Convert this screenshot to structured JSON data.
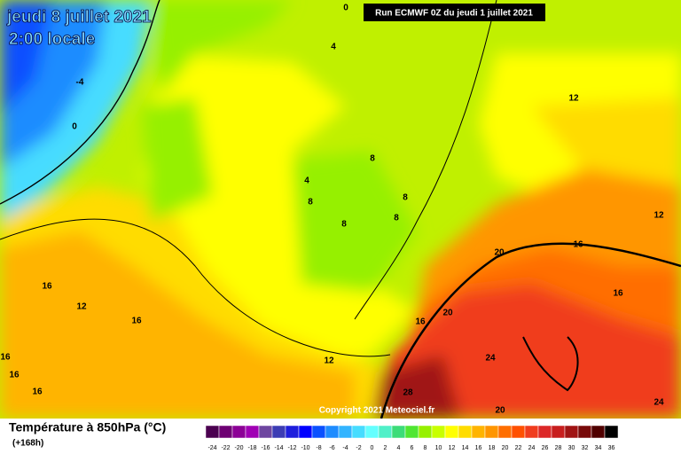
{
  "header": {
    "date": "jeudi 8 juillet 2021",
    "time": "2:00 locale",
    "run": "Run ECMWF 0Z du jeudi 1 juillet 2021"
  },
  "copyright": "Copyright 2021 Meteociel.fr",
  "legend": {
    "title": "Température à 850hPa (°C)",
    "lead": "(+168h)",
    "values": [
      -24,
      -22,
      -20,
      -18,
      -16,
      -14,
      -12,
      -10,
      -8,
      -6,
      -4,
      -2,
      0,
      2,
      4,
      6,
      8,
      10,
      12,
      14,
      16,
      18,
      20,
      22,
      24,
      26,
      28,
      30,
      32,
      34,
      36
    ],
    "colors": [
      "#4b0050",
      "#6e0073",
      "#8c0096",
      "#a000b4",
      "#6e46a0",
      "#3c3cb4",
      "#1e1edc",
      "#0000ff",
      "#0a50ff",
      "#1e8cff",
      "#32b4ff",
      "#46dcff",
      "#64ffff",
      "#50f0c8",
      "#3cdc78",
      "#50e632",
      "#96f000",
      "#c8ff00",
      "#ffff00",
      "#ffdc00",
      "#ffb400",
      "#ff9600",
      "#ff6e00",
      "#ff5000",
      "#f03c1e",
      "#dc2828",
      "#c81e1e",
      "#a01414",
      "#780a0a",
      "#500000",
      "#000000"
    ]
  },
  "contour_labels": [
    0,
    4,
    -4,
    0,
    12,
    8,
    4,
    8,
    8,
    8,
    8,
    12,
    16,
    20,
    16,
    12,
    16,
    16,
    16,
    20,
    12,
    24,
    16,
    16,
    16,
    28,
    20,
    24
  ]
}
